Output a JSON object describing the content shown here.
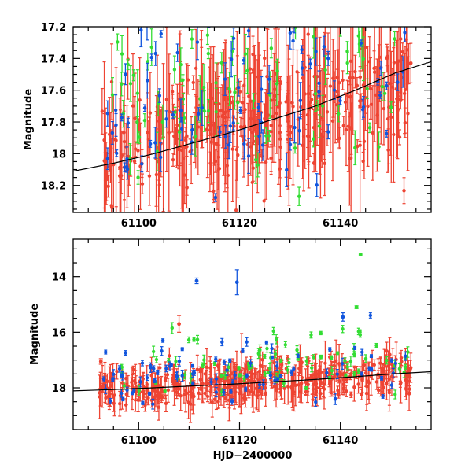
{
  "chart_data": [
    {
      "type": "scatter",
      "panel": "top",
      "xlabel": "",
      "ylabel": "Magnitude",
      "xlim": [
        61087,
        61158
      ],
      "ylim": [
        18.37,
        17.2
      ],
      "y_inverted": true,
      "xticks": [
        61100,
        61120,
        61140
      ],
      "xtick_labels": [
        "61100",
        "61120",
        "61140"
      ],
      "yticks": [
        17.2,
        17.4,
        17.6,
        17.8,
        18,
        18.2
      ],
      "ytick_labels": [
        "17.2",
        "17.4",
        "17.6",
        "17.8",
        "18",
        "18.2"
      ],
      "model_curve": {
        "name": "fit",
        "color": "#000000",
        "x": [
          61087,
          61095,
          61103,
          61111,
          61119,
          61127,
          61135,
          61143,
          61151,
          61158
        ],
        "y": [
          18.11,
          18.06,
          18.0,
          17.93,
          17.86,
          17.78,
          17.7,
          17.6,
          17.49,
          17.42
        ]
      },
      "series": [
        {
          "name": "red",
          "color": "#ee4433",
          "x_range": [
            61092,
            61154
          ],
          "mag_center": [
            18.02,
            17.55
          ],
          "scatter": 0.18,
          "err_range": [
            0.04,
            0.5
          ],
          "count": 360,
          "seed": 11
        },
        {
          "name": "blue",
          "color": "#1155dd",
          "x_range": [
            61093,
            61153
          ],
          "mag_center": [
            17.85,
            17.45
          ],
          "scatter": 0.3,
          "err_range": [
            0.02,
            0.12
          ],
          "count": 90,
          "seed": 23
        },
        {
          "name": "green",
          "color": "#33dd33",
          "x_range": [
            61094,
            61154
          ],
          "mag_center": [
            17.7,
            17.35
          ],
          "scatter": 0.3,
          "err_range": [
            0.03,
            0.15
          ],
          "count": 85,
          "seed": 37
        }
      ]
    },
    {
      "type": "scatter",
      "panel": "bottom",
      "xlabel": "HJD−2400000",
      "ylabel": "Magnitude",
      "xlim": [
        61087,
        61158
      ],
      "ylim": [
        19.5,
        12.65
      ],
      "y_inverted": true,
      "xticks": [
        61100,
        61120,
        61140
      ],
      "xtick_labels": [
        "61100",
        "61120",
        "61140"
      ],
      "yticks": [
        14,
        16,
        18
      ],
      "ytick_labels": [
        "14",
        "16",
        "18"
      ],
      "model_curve": {
        "name": "fit",
        "color": "#000000",
        "x": [
          61087,
          61095,
          61103,
          61111,
          61119,
          61127,
          61135,
          61143,
          61151,
          61158
        ],
        "y": [
          18.11,
          18.06,
          18.0,
          17.93,
          17.86,
          17.78,
          17.7,
          17.6,
          17.49,
          17.42
        ]
      },
      "series": [
        {
          "name": "red",
          "color": "#ee4433",
          "x_range": [
            61092,
            61154
          ],
          "mag_center": [
            18.1,
            17.5
          ],
          "scatter": 0.35,
          "err_range": [
            0.1,
            0.8
          ],
          "count": 420,
          "seed": 51
        },
        {
          "name": "blue",
          "color": "#1155dd",
          "x_range": [
            61093,
            61153
          ],
          "mag_center": [
            17.6,
            17.2
          ],
          "scatter": 0.6,
          "err_range": [
            0.05,
            0.2
          ],
          "count": 90,
          "seed": 63
        },
        {
          "name": "green",
          "color": "#33dd33",
          "x_range": [
            61094,
            61154
          ],
          "mag_center": [
            17.3,
            17.0
          ],
          "scatter": 0.6,
          "err_range": [
            0.05,
            0.2
          ],
          "count": 85,
          "seed": 77
        }
      ],
      "outliers": [
        {
          "series": "blue",
          "x": 61111.5,
          "y": 14.15,
          "err": 0.1
        },
        {
          "series": "blue",
          "x": 61119.5,
          "y": 14.2,
          "err": 0.45
        },
        {
          "series": "blue",
          "x": 61140.5,
          "y": 15.45,
          "err": 0.15
        },
        {
          "series": "green",
          "x": 61144.0,
          "y": 13.2,
          "err": 0.05
        },
        {
          "series": "green",
          "x": 61143.2,
          "y": 15.1,
          "err": 0.05
        },
        {
          "series": "blue",
          "x": 61139.0,
          "y": 18.4,
          "err": 0.2
        },
        {
          "series": "red",
          "x": 61108.0,
          "y": 15.7,
          "err": 0.3
        },
        {
          "series": "red",
          "x": 61092.5,
          "y": 17.05,
          "err": 0.1
        }
      ]
    }
  ]
}
